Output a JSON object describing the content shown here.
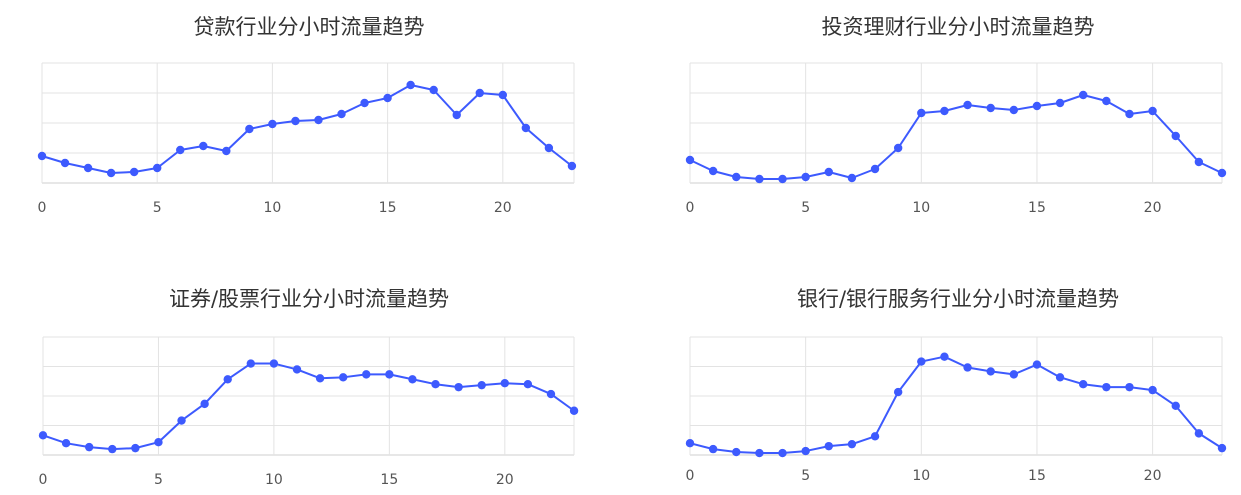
{
  "chart_data": [
    {
      "type": "line",
      "title": "贷款行业分小时流量趋势",
      "xlabel": "",
      "ylabel": "",
      "x": [
        0,
        1,
        2,
        3,
        4,
        5,
        6,
        7,
        8,
        9,
        10,
        11,
        12,
        13,
        14,
        15,
        16,
        17,
        18,
        19,
        20,
        21,
        22,
        23
      ],
      "values": [
        27,
        20,
        15,
        10,
        11,
        15,
        33,
        37,
        32,
        54,
        59,
        62,
        63,
        69,
        80,
        85,
        98,
        93,
        68,
        90,
        88,
        55,
        35,
        17
      ],
      "x_ticks": [
        "0",
        "5",
        "10",
        "15",
        "20"
      ],
      "ylim": [
        0,
        120
      ],
      "grid": true,
      "color": "#3d5afe"
    },
    {
      "type": "line",
      "title": "投资理财行业分小时流量趋势",
      "xlabel": "",
      "ylabel": "",
      "x": [
        0,
        1,
        2,
        3,
        4,
        5,
        6,
        7,
        8,
        9,
        10,
        11,
        12,
        13,
        14,
        15,
        16,
        17,
        18,
        19,
        20,
        21,
        22,
        23
      ],
      "values": [
        23,
        12,
        6,
        4,
        4,
        6,
        11,
        5,
        14,
        35,
        70,
        72,
        78,
        75,
        73,
        77,
        80,
        88,
        82,
        69,
        72,
        47,
        21,
        10
      ],
      "x_ticks": [
        "0",
        "5",
        "10",
        "15",
        "20"
      ],
      "ylim": [
        0,
        120
      ],
      "grid": true,
      "color": "#3d5afe"
    },
    {
      "type": "line",
      "title": "证券/股票行业分小时流量趋势",
      "xlabel": "",
      "ylabel": "",
      "x": [
        0,
        1,
        2,
        3,
        4,
        5,
        6,
        7,
        8,
        9,
        10,
        11,
        12,
        13,
        14,
        15,
        16,
        17,
        18,
        19,
        20,
        21,
        22,
        23
      ],
      "values": [
        20,
        12,
        8,
        6,
        7,
        13,
        35,
        52,
        77,
        93,
        93,
        87,
        78,
        79,
        82,
        82,
        77,
        72,
        69,
        71,
        73,
        72,
        62,
        45
      ],
      "x_ticks": [
        "0",
        "5",
        "10",
        "15",
        "20"
      ],
      "ylim": [
        0,
        120
      ],
      "grid": true,
      "color": "#3d5afe"
    },
    {
      "type": "line",
      "title": "银行/银行服务行业分小时流量趋势",
      "xlabel": "",
      "ylabel": "",
      "x": [
        0,
        1,
        2,
        3,
        4,
        5,
        6,
        7,
        8,
        9,
        10,
        11,
        12,
        13,
        14,
        15,
        16,
        17,
        18,
        19,
        20,
        21,
        22,
        23
      ],
      "values": [
        12,
        6,
        3,
        2,
        2,
        4,
        9,
        11,
        19,
        64,
        95,
        100,
        89,
        85,
        82,
        92,
        79,
        72,
        69,
        69,
        66,
        50,
        22,
        7
      ],
      "x_ticks": [
        "0",
        "5",
        "10",
        "15",
        "20"
      ],
      "ylim": [
        0,
        120
      ],
      "grid": true,
      "color": "#3d5afe"
    }
  ]
}
